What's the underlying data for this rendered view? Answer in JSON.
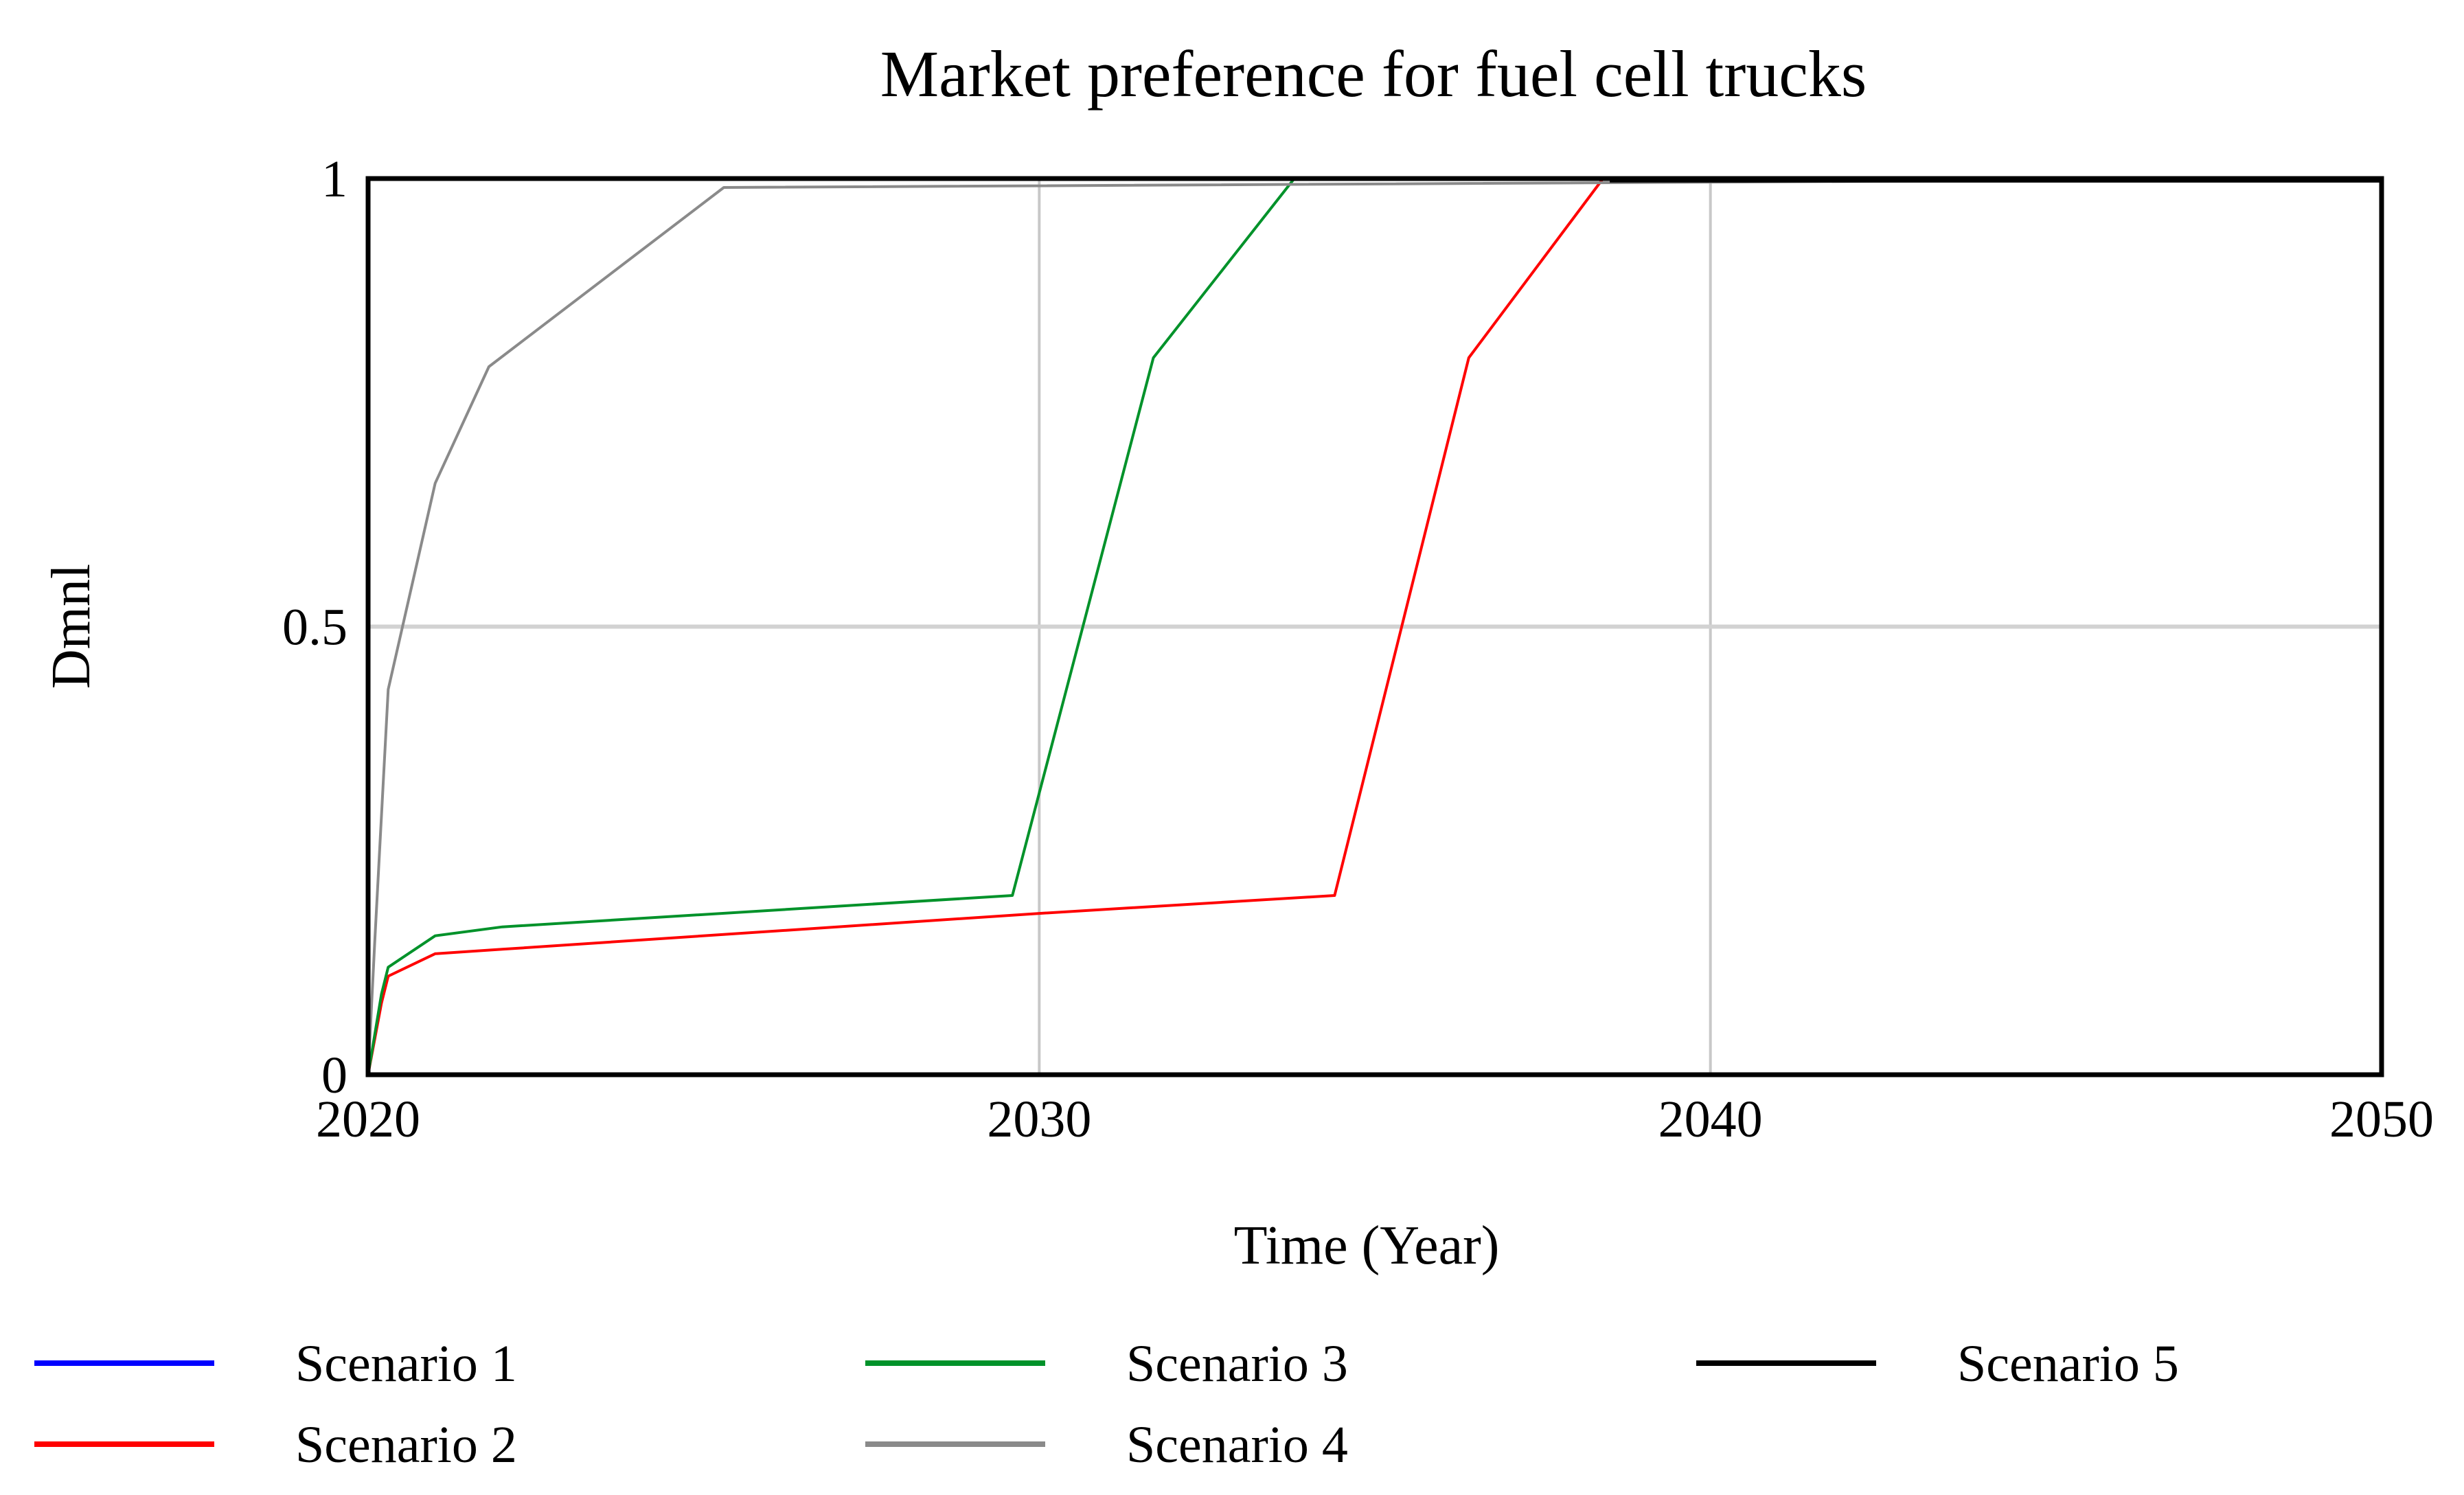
{
  "chart_data": {
    "type": "line",
    "title": "Market preference for fuel cell trucks",
    "xlabel": "Time (Year)",
    "ylabel": "Dmnl",
    "xlim": [
      2020,
      2050
    ],
    "ylim": [
      0,
      1
    ],
    "xticks": [
      2020,
      2030,
      2040,
      2050
    ],
    "xtick_labels": [
      "2020",
      "2030",
      "2040",
      "2050"
    ],
    "yticks": [
      0,
      0.5,
      1
    ],
    "ytick_labels": [
      "0",
      "0.5",
      "1"
    ],
    "grid": true,
    "legend_position": "bottom",
    "series": [
      {
        "name": "Scenario 1",
        "color": "#0000ff",
        "x": [
          2020,
          2050
        ],
        "y": [
          0,
          0
        ]
      },
      {
        "name": "Scenario 2",
        "color": "#ff0000",
        "x": [
          2020,
          2020.2,
          2020.3,
          2021,
          2022,
          2030,
          2034.4,
          2036.4,
          2038.4,
          2050
        ],
        "y": [
          0,
          0.08,
          0.11,
          0.135,
          0.14,
          0.18,
          0.2,
          0.8,
          1,
          1
        ]
      },
      {
        "name": "Scenario 3",
        "color": "#00922a",
        "x": [
          2020,
          2020.2,
          2020.3,
          2021,
          2022,
          2029.6,
          2031.7,
          2033.8,
          2050
        ],
        "y": [
          0,
          0.09,
          0.12,
          0.155,
          0.165,
          0.2,
          0.8,
          1,
          1
        ]
      },
      {
        "name": "Scenario 4",
        "color": "#8a8a8a",
        "x": [
          2020,
          2020.1,
          2020.3,
          2021,
          2021.8,
          2025.3,
          2050
        ],
        "y": [
          0,
          0.15,
          0.43,
          0.66,
          0.79,
          0.99,
          1
        ]
      },
      {
        "name": "Scenario 5",
        "color": "#000000",
        "x": [
          2038.5,
          2050
        ],
        "y": [
          0.997,
          0.997
        ]
      }
    ]
  }
}
